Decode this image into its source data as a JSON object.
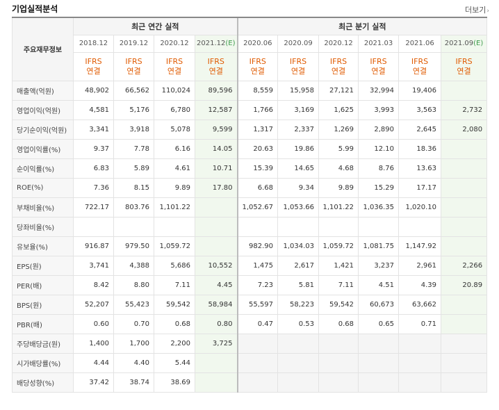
{
  "section_title": "기업실적분석",
  "more_label": "더보기",
  "header": {
    "row_label": "주요재무정보",
    "annual_group": "최근 연간 실적",
    "quarter_group": "최근 분기 실적",
    "periods": [
      {
        "label": "2018.12",
        "est": false
      },
      {
        "label": "2019.12",
        "est": false
      },
      {
        "label": "2020.12",
        "est": false
      },
      {
        "label": "2021.12(E)",
        "est": true
      },
      {
        "label": "2020.06",
        "est": false
      },
      {
        "label": "2020.09",
        "est": false
      },
      {
        "label": "2020.12",
        "est": false
      },
      {
        "label": "2021.03",
        "est": false
      },
      {
        "label": "2021.06",
        "est": false
      },
      {
        "label": "2021.09(E)",
        "est": true
      }
    ],
    "ifrs_line1": "IFRS",
    "ifrs_line2": "연결"
  },
  "rows": [
    {
      "label": "매출액(억원)",
      "values": [
        "48,902",
        "66,562",
        "110,024",
        "89,596",
        "8,559",
        "15,958",
        "27,121",
        "32,994",
        "19,406",
        ""
      ],
      "group_start": true
    },
    {
      "label": "영업이익(억원)",
      "values": [
        "4,581",
        "5,176",
        "6,780",
        "12,587",
        "1,766",
        "3,169",
        "1,625",
        "3,993",
        "3,563",
        "2,732"
      ]
    },
    {
      "label": "당기순이익(억원)",
      "values": [
        "3,341",
        "3,918",
        "5,078",
        "9,599",
        "1,317",
        "2,337",
        "1,269",
        "2,890",
        "2,645",
        "2,080"
      ]
    },
    {
      "label": "영업이익률(%)",
      "values": [
        "9.37",
        "7.78",
        "6.16",
        "14.05",
        "20.63",
        "19.86",
        "5.99",
        "12.10",
        "18.36",
        ""
      ],
      "group_start": true
    },
    {
      "label": "순이익률(%)",
      "values": [
        "6.83",
        "5.89",
        "4.61",
        "10.71",
        "15.39",
        "14.65",
        "4.68",
        "8.76",
        "13.63",
        ""
      ]
    },
    {
      "label": "ROE(%)",
      "values": [
        "7.36",
        "8.15",
        "9.89",
        "17.80",
        "6.68",
        "9.34",
        "9.89",
        "15.29",
        "17.17",
        ""
      ]
    },
    {
      "label": "부채비율(%)",
      "values": [
        "722.17",
        "803.76",
        "1,101.22",
        "",
        "1,052.67",
        "1,053.66",
        "1,101.22",
        "1,036.35",
        "1,020.10",
        ""
      ],
      "group_start": true
    },
    {
      "label": "당좌비율(%)",
      "values": [
        "",
        "",
        "",
        "",
        "",
        "",
        "",
        "",
        "",
        ""
      ]
    },
    {
      "label": "유보율(%)",
      "values": [
        "916.87",
        "979.50",
        "1,059.72",
        "",
        "982.90",
        "1,034.03",
        "1,059.72",
        "1,081.75",
        "1,147.92",
        ""
      ]
    },
    {
      "label": "EPS(원)",
      "values": [
        "3,741",
        "4,388",
        "5,686",
        "10,552",
        "1,475",
        "2,617",
        "1,421",
        "3,237",
        "2,961",
        "2,266"
      ],
      "group_start": true
    },
    {
      "label": "PER(배)",
      "values": [
        "8.42",
        "8.80",
        "7.11",
        "4.45",
        "7.23",
        "5.81",
        "7.11",
        "4.51",
        "4.39",
        "20.89"
      ]
    },
    {
      "label": "BPS(원)",
      "values": [
        "52,207",
        "55,423",
        "59,542",
        "58,984",
        "55,597",
        "58,223",
        "59,542",
        "60,673",
        "63,662",
        ""
      ]
    },
    {
      "label": "PBR(배)",
      "values": [
        "0.60",
        "0.70",
        "0.68",
        "0.80",
        "0.47",
        "0.53",
        "0.68",
        "0.65",
        "0.71",
        ""
      ]
    },
    {
      "label": "주당배당금(원)",
      "values": [
        "1,400",
        "1,700",
        "2,200",
        "3,725",
        "",
        "",
        "",
        "",
        "",
        ""
      ],
      "group_start": true,
      "quarter_na": true
    },
    {
      "label": "시가배당률(%)",
      "values": [
        "4.44",
        "4.40",
        "5.44",
        "",
        "",
        "",
        "",
        "",
        "",
        ""
      ],
      "quarter_na": true
    },
    {
      "label": "배당성향(%)",
      "values": [
        "37.42",
        "38.74",
        "38.69",
        "",
        "",
        "",
        "",
        "",
        "",
        ""
      ],
      "quarter_na": true
    }
  ]
}
